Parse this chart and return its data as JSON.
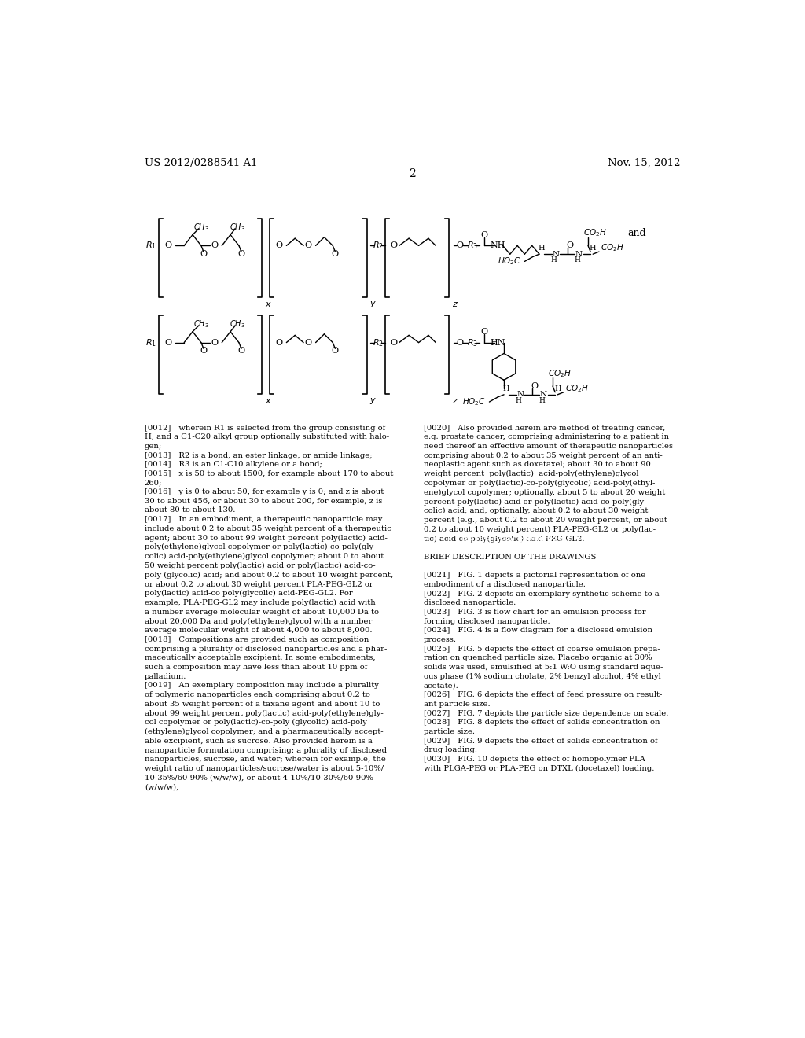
{
  "page_number": "2",
  "patent_number": "US 2012/0288541 A1",
  "patent_date": "Nov. 15, 2012",
  "background_color": "#ffffff",
  "left_text": "[0012] wherein R1 is selected from the group consisting of\nH, and a C1-C20 alkyl group optionally substituted with halo-\ngen;\n[0013] R2 is a bond, an ester linkage, or amide linkage;\n[0014] R3 is an C1-C10 alkylene or a bond;\n[0015] x is 50 to about 1500, for example about 170 to about\n260;\n[0016] y is 0 to about 50, for example y is 0; and z is about\n30 to about 456, or about 30 to about 200, for example, z is\nabout 80 to about 130.\n[0017] In an embodiment, a therapeutic nanoparticle may\ninclude about 0.2 to about 35 weight percent of a therapeutic\nagent; about 30 to about 99 weight percent poly(lactic) acid-\npoly(ethylene)glycol copolymer or poly(lactic)-co-poly(gly-\ncolic) acid-poly(ethylene)glycol copolymer; about 0 to about\n50 weight percent poly(lactic) acid or poly(lactic) acid-co-\npoly (glycolic) acid; and about 0.2 to about 10 weight percent,\nor about 0.2 to about 30 weight percent PLA-PEG-GL2 or\npoly(lactic) acid-co poly(glycolic) acid-PEG-GL2. For\nexample, PLA-PEG-GL2 may include poly(lactic) acid with\na number average molecular weight of about 10,000 Da to\nabout 20,000 Da and poly(ethylene)glycol with a number\naverage molecular weight of about 4,000 to about 8,000.\n[0018] Compositions are provided such as composition\ncomprising a plurality of disclosed nanoparticles and a phar-\nmaceutically acceptable excipient. In some embodiments,\nsuch a composition may have less than about 10 ppm of\npalladium.\n[0019] An exemplary composition may include a plurality\nof polymeric nanoparticles each comprising about 0.2 to\nabout 35 weight percent of a taxane agent and about 10 to\nabout 99 weight percent poly(lactic) acid-poly(ethylene)gly-\ncol copolymer or poly(lactic)-co-poly (glycolic) acid-poly\n(ethylene)glycol copolymer; and a pharmaceutically accept-\nable excipient, such as sucrose. Also provided herein is a\nnanoparticle formulation comprising: a plurality of disclosed\nnanoparticles, sucrose, and water; wherein for example, the\nweight ratio of nanoparticles/sucrose/water is about 5-10%/\n10-35%/60-90% (w/w/w), or about 4-10%/10-30%/60-90%\n(w/w/w),",
  "right_text": "[0020] Also provided herein are method of treating cancer,\ne.g. prostate cancer, comprising administering to a patient in\nneed thereof an effective amount of therapeutic nanoparticles\ncomprising about 0.2 to about 35 weight percent of an anti-\nneoplastic agent such as doxetaxel; about 30 to about 90\nweight percent  poly(lactic)  acid-poly(ethylene)glycol\ncopolymer or poly(lactic)-co-poly(glycolic) acid-poly(ethyl-\nene)glycol copolymer; optionally, about 5 to about 20 weight\npercent poly(lactic) acid or poly(lactic) acid-co-poly(gly-\ncolic) acid; and, optionally, about 0.2 to about 30 weight\npercent (e.g., about 0.2 to about 20 weight percent, or about\n0.2 to about 10 weight percent) PLA-PEG-GL2 or poly(lac-\ntic) acid-co poly(glycolic) acid-PEG-GL2.\n\nBRIEF DESCRIPTION OF THE DRAWINGS\n\n[0021] FIG. 1 depicts a pictorial representation of one\nembodiment of a disclosed nanoparticle.\n[0022] FIG. 2 depicts an exemplary synthetic scheme to a\ndisclosed nanoparticle.\n[0023] FIG. 3 is flow chart for an emulsion process for\nforming disclosed nanoparticle.\n[0024] FIG. 4 is a flow diagram for a disclosed emulsion\nprocess.\n[0025] FIG. 5 depicts the effect of coarse emulsion prepa-\nration on quenched particle size. Placebo organic at 30%\nsolids was used, emulsified at 5:1 W:O using standard aque-\nous phase (1% sodium cholate, 2% benzyl alcohol, 4% ethyl\nacetate).\n[0026] FIG. 6 depicts the effect of feed pressure on result-\nant particle size.\n[0027] FIG. 7 depicts the particle size dependence on scale.\n[0028] FIG. 8 depicts the effect of solids concentration on\nparticle size.\n[0029] FIG. 9 depicts the effect of solids concentration of\ndrug loading.\n[0030] FIG. 10 depicts the effect of homopolymer PLA\nwith PLGA-PEG or PLA-PEG on DTXL (docetaxel) loading."
}
